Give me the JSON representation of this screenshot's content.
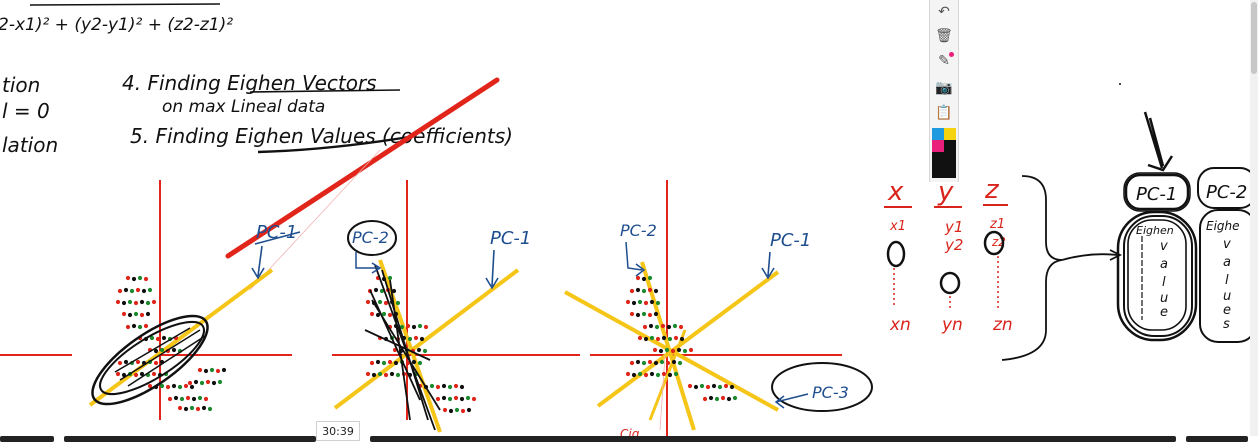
{
  "notes": {
    "formula": "2-x1)² + (y2-y1)² + (z2-z1)²",
    "left_words": [
      "tion",
      "l = 0",
      "lation"
    ],
    "step4_line1": "4. Finding Eighen Vectors",
    "step4_line2": "on max Lineal data",
    "step5": "5. Finding Eighen Values (coefficients)",
    "pc_labels": {
      "plot1_pc1": "PC-1",
      "plot2_pc2": "PC-2",
      "plot2_pc1": "PC-1",
      "plot3_pc2": "PC-2",
      "plot3_pc1": "PC-1",
      "plot3_pc3": "PC-3",
      "plot3_bottom": "Cig"
    },
    "columns": {
      "headers": [
        "x",
        "y",
        "z"
      ],
      "first": [
        "x1",
        "y1",
        "z1"
      ],
      "second": [
        "",
        "y2",
        "z2"
      ],
      "last": [
        "xn",
        "yn",
        "zn"
      ]
    },
    "eigen_boxes": {
      "pc1": "PC-1",
      "pc2": "PC-2",
      "inner1": "Eighen",
      "inner2": "Eighe",
      "letters": [
        "v",
        "a",
        "l",
        "u",
        "e"
      ],
      "letters2": [
        "v",
        "a",
        "l",
        "u",
        "e",
        "s"
      ]
    }
  },
  "toolbar": {
    "tools": [
      "undo-icon",
      "trash-icon",
      "highlighter-icon",
      "camera-icon",
      "clipboard-icon"
    ],
    "colors": [
      "#1e9be0",
      "#f5d311",
      "#ea1f7b",
      "#111111"
    ]
  },
  "player": {
    "timestamp": "30:39"
  }
}
